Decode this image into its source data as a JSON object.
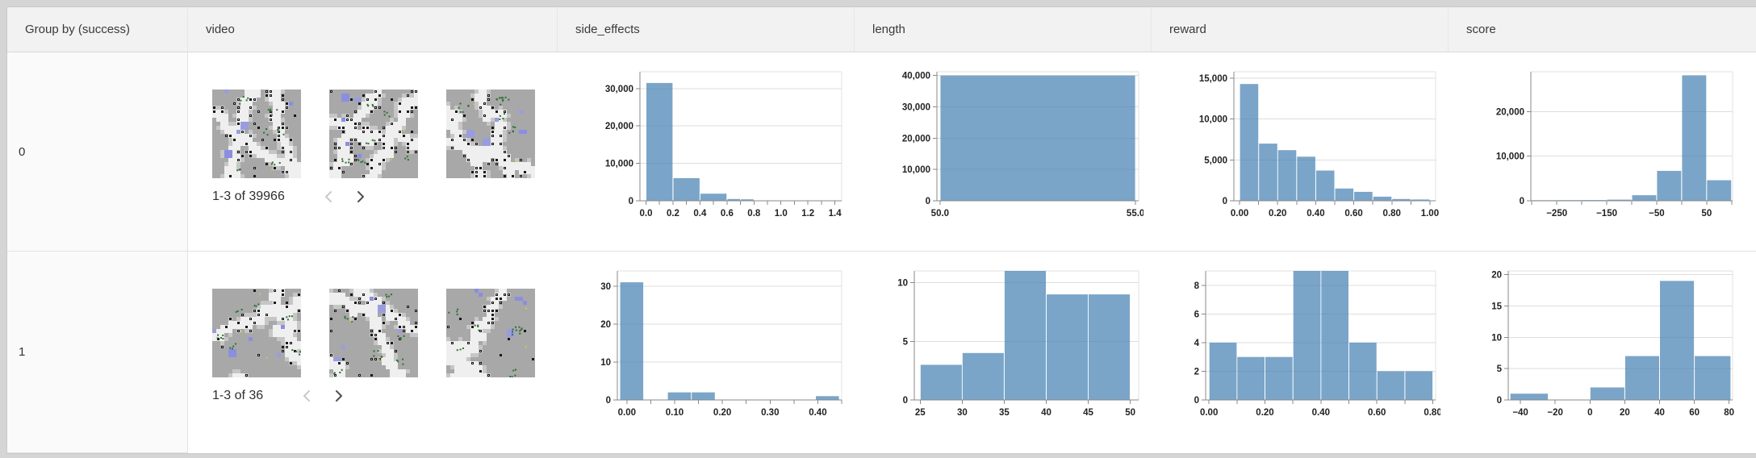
{
  "header": {
    "columns": [
      {
        "label": "Group by (success)"
      },
      {
        "label": "video"
      },
      {
        "label": "side_effects"
      },
      {
        "label": "length"
      },
      {
        "label": "reward"
      },
      {
        "label": "score"
      }
    ]
  },
  "rows": [
    {
      "group_label": "0",
      "pagination": {
        "label": "1-3 of 39966"
      }
    },
    {
      "group_label": "1",
      "pagination": {
        "label": "1-3 of 36"
      }
    }
  ],
  "colors": {
    "bar": "#4682b4",
    "bar_opacity": "0.72",
    "axis": "#888888",
    "grid": "#dddddd",
    "frame": "#e2e2e2",
    "tick_label": "#222222",
    "header_bg": "#f2f2f2",
    "group_bg": "#fafafa",
    "page_bg": "#d5d5d5",
    "chevron_disabled": "#c8c8c8",
    "chevron_enabled": "#4f4f4f"
  },
  "chart_data": [
    {
      "type": "histogram",
      "group": "0",
      "column": "side_effects",
      "xlim": [
        -0.045,
        1.45
      ],
      "ylim": [
        0,
        34500
      ],
      "yticks": [
        [
          0,
          "0"
        ],
        [
          10000,
          "10,000"
        ],
        [
          20000,
          "20,000"
        ],
        [
          30000,
          "30,000"
        ]
      ],
      "xticks": [
        [
          0,
          "0.0"
        ],
        [
          0.1,
          ""
        ],
        [
          0.2,
          "0.2"
        ],
        [
          0.3,
          ""
        ],
        [
          0.4,
          "0.4"
        ],
        [
          0.5,
          ""
        ],
        [
          0.6,
          "0.6"
        ],
        [
          0.7,
          ""
        ],
        [
          0.8,
          "0.8"
        ],
        [
          0.9,
          ""
        ],
        [
          1.0,
          "1.0"
        ],
        [
          1.1,
          ""
        ],
        [
          1.2,
          "1.2"
        ],
        [
          1.3,
          ""
        ],
        [
          1.4,
          "1.4"
        ]
      ],
      "bins": [
        [
          0,
          0.2,
          31500
        ],
        [
          0.2,
          0.4,
          6050
        ],
        [
          0.4,
          0.6,
          1900
        ],
        [
          0.6,
          0.7,
          480
        ],
        [
          0.7,
          0.8,
          380
        ],
        [
          0.8,
          0.9,
          90
        ],
        [
          0.9,
          1.0,
          60
        ],
        [
          1.0,
          1.1,
          35
        ],
        [
          1.1,
          1.2,
          20
        ],
        [
          1.2,
          1.3,
          12
        ],
        [
          1.3,
          1.4,
          8
        ]
      ]
    },
    {
      "type": "histogram",
      "group": "0",
      "column": "length",
      "xlim": [
        49.92,
        55.08
      ],
      "ylim": [
        0,
        41200
      ],
      "yticks": [
        [
          0,
          "0"
        ],
        [
          10000,
          "10,000"
        ],
        [
          20000,
          "20,000"
        ],
        [
          30000,
          "30,000"
        ],
        [
          40000,
          "40,000"
        ]
      ],
      "xticks": [
        [
          50,
          "50.0"
        ],
        [
          55,
          "55.0"
        ]
      ],
      "bins": [
        [
          50,
          55,
          40000
        ]
      ]
    },
    {
      "type": "histogram",
      "group": "0",
      "column": "reward",
      "xlim": [
        -0.03,
        1.03
      ],
      "ylim": [
        0,
        15800
      ],
      "yticks": [
        [
          0,
          "0"
        ],
        [
          5000,
          "5,000"
        ],
        [
          10000,
          "10,000"
        ],
        [
          15000,
          "15,000"
        ]
      ],
      "xticks": [
        [
          0,
          "0.00"
        ],
        [
          0.1,
          ""
        ],
        [
          0.2,
          "0.20"
        ],
        [
          0.3,
          ""
        ],
        [
          0.4,
          "0.40"
        ],
        [
          0.5,
          ""
        ],
        [
          0.6,
          "0.60"
        ],
        [
          0.7,
          ""
        ],
        [
          0.8,
          "0.80"
        ],
        [
          0.9,
          ""
        ],
        [
          1.0,
          "1.00"
        ]
      ],
      "bins": [
        [
          0,
          0.1,
          14300
        ],
        [
          0.1,
          0.2,
          7000
        ],
        [
          0.2,
          0.3,
          6200
        ],
        [
          0.3,
          0.4,
          5400
        ],
        [
          0.4,
          0.5,
          3700
        ],
        [
          0.5,
          0.6,
          1500
        ],
        [
          0.6,
          0.7,
          1100
        ],
        [
          0.7,
          0.8,
          500
        ],
        [
          0.8,
          0.9,
          220
        ],
        [
          0.9,
          1.0,
          160
        ]
      ]
    },
    {
      "type": "histogram",
      "group": "0",
      "column": "score",
      "xlim": [
        -302,
        102
      ],
      "ylim": [
        0,
        28900
      ],
      "yticks": [
        [
          0,
          "0"
        ],
        [
          10000,
          "10,000"
        ],
        [
          20000,
          "20,000"
        ]
      ],
      "xticks": [
        [
          -300,
          ""
        ],
        [
          -250,
          "−250"
        ],
        [
          -200,
          ""
        ],
        [
          -150,
          "−150"
        ],
        [
          -100,
          ""
        ],
        [
          -50,
          "−50"
        ],
        [
          0,
          ""
        ],
        [
          50,
          "50"
        ],
        [
          100,
          ""
        ]
      ],
      "bins": [
        [
          -300,
          -250,
          120
        ],
        [
          -250,
          -200,
          150
        ],
        [
          -200,
          -150,
          160
        ],
        [
          -150,
          -100,
          260
        ],
        [
          -100,
          -50,
          1250
        ],
        [
          -50,
          0,
          6700
        ],
        [
          0,
          50,
          28100
        ],
        [
          50,
          100,
          4600
        ]
      ]
    },
    {
      "type": "histogram",
      "group": "1",
      "column": "side_effects",
      "xlim": [
        -0.02,
        0.45
      ],
      "ylim": [
        0,
        34
      ],
      "yticks": [
        [
          0,
          "0"
        ],
        [
          10,
          "10"
        ],
        [
          20,
          "20"
        ],
        [
          30,
          "30"
        ]
      ],
      "xticks": [
        [
          0,
          "0.00"
        ],
        [
          0.05,
          ""
        ],
        [
          0.1,
          "0.10"
        ],
        [
          0.15,
          ""
        ],
        [
          0.2,
          "0.20"
        ],
        [
          0.25,
          ""
        ],
        [
          0.3,
          "0.30"
        ],
        [
          0.35,
          ""
        ],
        [
          0.4,
          "0.40"
        ],
        [
          0.45,
          ""
        ]
      ],
      "bins": [
        [
          -0.015,
          0.035,
          31
        ],
        [
          0.085,
          0.135,
          2
        ],
        [
          0.135,
          0.185,
          2
        ],
        [
          0.395,
          0.445,
          1
        ]
      ]
    },
    {
      "type": "histogram",
      "group": "1",
      "column": "length",
      "xlim": [
        24.3,
        51.0
      ],
      "ylim": [
        0,
        11
      ],
      "yticks": [
        [
          0,
          "0"
        ],
        [
          5,
          "5"
        ],
        [
          10,
          "10"
        ]
      ],
      "xticks": [
        [
          25,
          "25"
        ],
        [
          30,
          "30"
        ],
        [
          35,
          "35"
        ],
        [
          40,
          "40"
        ],
        [
          45,
          "45"
        ],
        [
          50,
          "50"
        ]
      ],
      "bins": [
        [
          25,
          30,
          3
        ],
        [
          30,
          35,
          4
        ],
        [
          35,
          40,
          11
        ],
        [
          40,
          45,
          9
        ],
        [
          45,
          50,
          9
        ]
      ]
    },
    {
      "type": "histogram",
      "group": "1",
      "column": "reward",
      "xlim": [
        -0.012,
        0.81
      ],
      "ylim": [
        0,
        9
      ],
      "yticks": [
        [
          0,
          "0"
        ],
        [
          2,
          "2"
        ],
        [
          4,
          "4"
        ],
        [
          6,
          "6"
        ],
        [
          8,
          "8"
        ]
      ],
      "xticks": [
        [
          0,
          "0.00"
        ],
        [
          0.1,
          ""
        ],
        [
          0.2,
          "0.20"
        ],
        [
          0.3,
          ""
        ],
        [
          0.4,
          "0.40"
        ],
        [
          0.5,
          ""
        ],
        [
          0.6,
          "0.60"
        ],
        [
          0.7,
          ""
        ],
        [
          0.8,
          "0.80"
        ]
      ],
      "bins": [
        [
          0,
          0.1,
          4
        ],
        [
          0.1,
          0.2,
          3
        ],
        [
          0.2,
          0.3,
          3
        ],
        [
          0.3,
          0.4,
          9
        ],
        [
          0.4,
          0.5,
          9
        ],
        [
          0.5,
          0.6,
          4
        ],
        [
          0.6,
          0.7,
          2
        ],
        [
          0.7,
          0.8,
          2
        ]
      ]
    },
    {
      "type": "histogram",
      "group": "1",
      "column": "score",
      "xlim": [
        -47,
        82
      ],
      "ylim": [
        0,
        20.6
      ],
      "yticks": [
        [
          0,
          "0"
        ],
        [
          5,
          "5"
        ],
        [
          10,
          "10"
        ],
        [
          15,
          "15"
        ],
        [
          20,
          "20"
        ]
      ],
      "xticks": [
        [
          -40,
          "−40"
        ],
        [
          -20,
          "−20"
        ],
        [
          0,
          "0"
        ],
        [
          20,
          "20"
        ],
        [
          40,
          "40"
        ],
        [
          60,
          "60"
        ],
        [
          80,
          "80"
        ]
      ],
      "bins": [
        [
          -46,
          -24,
          1
        ],
        [
          0,
          20,
          2
        ],
        [
          20,
          40,
          7
        ],
        [
          40,
          60,
          19
        ],
        [
          60,
          81,
          7
        ]
      ]
    }
  ]
}
